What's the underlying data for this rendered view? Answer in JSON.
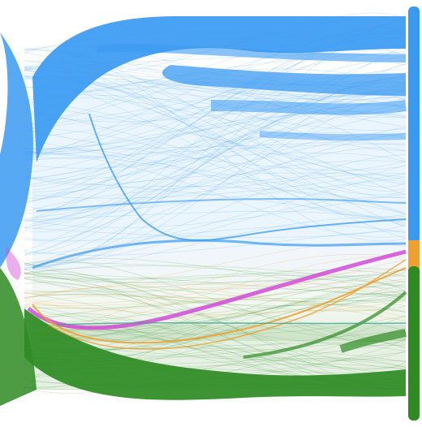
{
  "diagram": {
    "type": "flow-bundle",
    "colors": {
      "blue": "#3a9af2",
      "green": "#2e8b22",
      "magenta": "#d24bd8",
      "orange": "#f0a030",
      "teal": "#3aa58a"
    },
    "groups": [
      {
        "id": "blue",
        "color": "blue",
        "share": 0.62
      },
      {
        "id": "orange",
        "color": "orange",
        "share": 0.08
      },
      {
        "id": "green",
        "color": "green",
        "share": 0.3
      }
    ]
  }
}
